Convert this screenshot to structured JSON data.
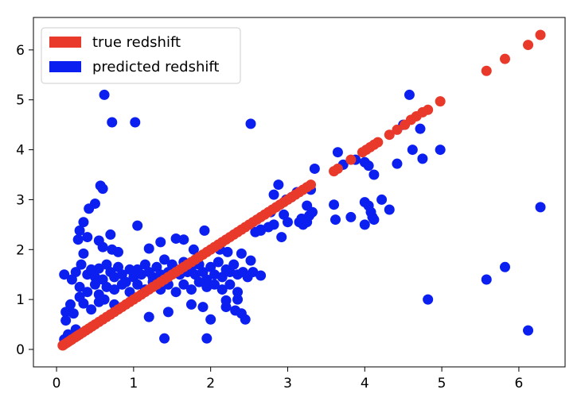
{
  "chart_data": {
    "type": "scatter",
    "title": "",
    "xlabel": "",
    "ylabel": "",
    "xlim": [
      -0.3,
      6.6
    ],
    "ylim": [
      -0.35,
      6.65
    ],
    "xticks": [
      "0",
      "1",
      "2",
      "3",
      "4",
      "5",
      "6"
    ],
    "yticks": [
      "0",
      "1",
      "2",
      "3",
      "4",
      "5",
      "6"
    ],
    "grid": false,
    "legend_position": "top-left",
    "series": [
      {
        "name": "true redshift",
        "color": "#e8392b",
        "points": [
          [
            0.08,
            0.08
          ],
          [
            0.1,
            0.1
          ],
          [
            0.13,
            0.13
          ],
          [
            0.15,
            0.15
          ],
          [
            0.18,
            0.18
          ],
          [
            0.2,
            0.2
          ],
          [
            0.24,
            0.24
          ],
          [
            0.27,
            0.27
          ],
          [
            0.3,
            0.3
          ],
          [
            0.34,
            0.34
          ],
          [
            0.38,
            0.38
          ],
          [
            0.42,
            0.42
          ],
          [
            0.46,
            0.46
          ],
          [
            0.5,
            0.5
          ],
          [
            0.55,
            0.55
          ],
          [
            0.6,
            0.6
          ],
          [
            0.65,
            0.65
          ],
          [
            0.7,
            0.7
          ],
          [
            0.75,
            0.75
          ],
          [
            0.8,
            0.8
          ],
          [
            0.85,
            0.85
          ],
          [
            0.9,
            0.9
          ],
          [
            0.95,
            0.95
          ],
          [
            1.0,
            1.0
          ],
          [
            1.05,
            1.05
          ],
          [
            1.1,
            1.1
          ],
          [
            1.15,
            1.15
          ],
          [
            1.2,
            1.2
          ],
          [
            1.25,
            1.25
          ],
          [
            1.3,
            1.3
          ],
          [
            1.35,
            1.35
          ],
          [
            1.4,
            1.4
          ],
          [
            1.45,
            1.45
          ],
          [
            1.5,
            1.5
          ],
          [
            1.55,
            1.55
          ],
          [
            1.6,
            1.6
          ],
          [
            1.65,
            1.65
          ],
          [
            1.7,
            1.7
          ],
          [
            1.75,
            1.75
          ],
          [
            1.8,
            1.8
          ],
          [
            1.85,
            1.85
          ],
          [
            1.9,
            1.9
          ],
          [
            1.95,
            1.95
          ],
          [
            2.0,
            2.0
          ],
          [
            2.05,
            2.05
          ],
          [
            2.1,
            2.1
          ],
          [
            2.15,
            2.15
          ],
          [
            2.2,
            2.2
          ],
          [
            2.25,
            2.25
          ],
          [
            2.3,
            2.3
          ],
          [
            2.35,
            2.35
          ],
          [
            2.4,
            2.4
          ],
          [
            2.45,
            2.45
          ],
          [
            2.5,
            2.5
          ],
          [
            2.55,
            2.55
          ],
          [
            2.6,
            2.6
          ],
          [
            2.65,
            2.65
          ],
          [
            2.7,
            2.7
          ],
          [
            2.75,
            2.75
          ],
          [
            2.8,
            2.8
          ],
          [
            2.85,
            2.85
          ],
          [
            2.9,
            2.9
          ],
          [
            2.95,
            2.95
          ],
          [
            3.0,
            3.0
          ],
          [
            3.05,
            3.05
          ],
          [
            3.1,
            3.1
          ],
          [
            3.15,
            3.15
          ],
          [
            3.2,
            3.2
          ],
          [
            3.25,
            3.25
          ],
          [
            3.3,
            3.3
          ],
          [
            3.6,
            3.57
          ],
          [
            3.65,
            3.62
          ],
          [
            3.82,
            3.8
          ],
          [
            3.97,
            3.95
          ],
          [
            4.02,
            4.0
          ],
          [
            4.07,
            4.05
          ],
          [
            4.12,
            4.1
          ],
          [
            4.17,
            4.15
          ],
          [
            4.32,
            4.3
          ],
          [
            4.42,
            4.4
          ],
          [
            4.52,
            4.5
          ],
          [
            4.6,
            4.6
          ],
          [
            4.67,
            4.67
          ],
          [
            4.75,
            4.75
          ],
          [
            4.82,
            4.8
          ],
          [
            4.98,
            4.97
          ],
          [
            5.58,
            5.58
          ],
          [
            5.82,
            5.82
          ],
          [
            6.12,
            6.1
          ],
          [
            6.28,
            6.3
          ]
        ]
      },
      {
        "name": "predicted redshift",
        "color": "#0b1ff0",
        "points": [
          [
            0.62,
            5.1
          ],
          [
            0.72,
            4.55
          ],
          [
            1.02,
            4.55
          ],
          [
            2.52,
            4.52
          ],
          [
            0.57,
            3.28
          ],
          [
            0.6,
            3.22
          ],
          [
            0.5,
            2.92
          ],
          [
            0.42,
            2.82
          ],
          [
            0.35,
            2.55
          ],
          [
            0.3,
            2.38
          ],
          [
            1.05,
            2.48
          ],
          [
            0.28,
            2.2
          ],
          [
            0.4,
            2.25
          ],
          [
            0.55,
            2.18
          ],
          [
            0.7,
            2.3
          ],
          [
            0.72,
            2.0
          ],
          [
            0.6,
            2.05
          ],
          [
            0.8,
            1.95
          ],
          [
            0.35,
            1.92
          ],
          [
            0.1,
            1.5
          ],
          [
            0.2,
            1.4
          ],
          [
            0.25,
            1.55
          ],
          [
            0.32,
            1.7
          ],
          [
            0.4,
            1.5
          ],
          [
            0.45,
            1.6
          ],
          [
            0.5,
            1.45
          ],
          [
            0.55,
            1.62
          ],
          [
            0.6,
            1.4
          ],
          [
            0.65,
            1.7
          ],
          [
            0.7,
            1.55
          ],
          [
            0.75,
            1.45
          ],
          [
            0.8,
            1.65
          ],
          [
            0.85,
            1.5
          ],
          [
            0.9,
            1.35
          ],
          [
            0.95,
            1.6
          ],
          [
            1.0,
            1.45
          ],
          [
            1.05,
            1.6
          ],
          [
            1.1,
            1.5
          ],
          [
            1.15,
            1.7
          ],
          [
            1.2,
            1.55
          ],
          [
            1.25,
            1.45
          ],
          [
            1.3,
            1.65
          ],
          [
            1.35,
            1.5
          ],
          [
            1.4,
            1.8
          ],
          [
            1.45,
            1.55
          ],
          [
            1.5,
            1.7
          ],
          [
            1.55,
            1.6
          ],
          [
            1.6,
            1.5
          ],
          [
            1.65,
            1.75
          ],
          [
            1.7,
            1.55
          ],
          [
            1.75,
            1.65
          ],
          [
            1.8,
            1.5
          ],
          [
            1.85,
            1.7
          ],
          [
            1.9,
            1.55
          ],
          [
            1.95,
            1.4
          ],
          [
            2.0,
            1.65
          ],
          [
            2.05,
            1.5
          ],
          [
            2.1,
            1.75
          ],
          [
            2.15,
            1.45
          ],
          [
            2.2,
            1.6
          ],
          [
            2.25,
            1.55
          ],
          [
            2.3,
            1.7
          ],
          [
            2.35,
            1.5
          ],
          [
            0.3,
            1.25
          ],
          [
            0.4,
            1.15
          ],
          [
            0.5,
            1.3
          ],
          [
            0.55,
            1.1
          ],
          [
            0.65,
            1.25
          ],
          [
            0.75,
            1.2
          ],
          [
            0.85,
            1.3
          ],
          [
            0.95,
            1.15
          ],
          [
            1.05,
            1.3
          ],
          [
            1.15,
            1.2
          ],
          [
            1.25,
            1.35
          ],
          [
            1.35,
            1.2
          ],
          [
            1.45,
            1.3
          ],
          [
            1.55,
            1.15
          ],
          [
            1.65,
            1.3
          ],
          [
            1.75,
            1.2
          ],
          [
            1.85,
            1.35
          ],
          [
            1.95,
            1.25
          ],
          [
            2.05,
            1.3
          ],
          [
            2.15,
            1.2
          ],
          [
            2.25,
            1.3
          ],
          [
            2.35,
            1.15
          ],
          [
            0.12,
            0.75
          ],
          [
            0.12,
            0.58
          ],
          [
            0.18,
            0.9
          ],
          [
            0.22,
            0.72
          ],
          [
            0.3,
            1.05
          ],
          [
            0.35,
            0.92
          ],
          [
            0.45,
            0.8
          ],
          [
            0.55,
            0.95
          ],
          [
            0.62,
            1.0
          ],
          [
            0.75,
            0.9
          ],
          [
            1.2,
            0.65
          ],
          [
            1.45,
            0.75
          ],
          [
            1.75,
            0.9
          ],
          [
            1.9,
            0.85
          ],
          [
            2.0,
            0.6
          ],
          [
            2.2,
            0.85
          ],
          [
            2.32,
            0.78
          ],
          [
            2.4,
            0.72
          ],
          [
            2.45,
            0.6
          ],
          [
            1.4,
            0.22
          ],
          [
            1.95,
            0.22
          ],
          [
            0.1,
            0.2
          ],
          [
            0.12,
            0.15
          ],
          [
            0.15,
            0.3
          ],
          [
            0.2,
            0.25
          ],
          [
            0.25,
            0.4
          ],
          [
            1.2,
            2.02
          ],
          [
            1.35,
            2.15
          ],
          [
            1.55,
            2.22
          ],
          [
            1.65,
            2.2
          ],
          [
            1.78,
            2.0
          ],
          [
            1.92,
            2.38
          ],
          [
            2.12,
            2.0
          ],
          [
            2.22,
            1.95
          ],
          [
            2.4,
            1.92
          ],
          [
            2.52,
            1.78
          ],
          [
            2.42,
            1.55
          ],
          [
            2.48,
            1.45
          ],
          [
            2.2,
            0.98
          ],
          [
            2.35,
            1.0
          ],
          [
            2.55,
            1.55
          ],
          [
            2.65,
            1.48
          ],
          [
            2.65,
            2.4
          ],
          [
            2.75,
            2.45
          ],
          [
            2.82,
            2.5
          ],
          [
            2.82,
            3.1
          ],
          [
            2.88,
            3.3
          ],
          [
            2.95,
            2.7
          ],
          [
            2.98,
            3.0
          ],
          [
            3.05,
            3.05
          ],
          [
            3.0,
            2.55
          ],
          [
            2.78,
            2.75
          ],
          [
            2.65,
            2.38
          ],
          [
            2.58,
            2.35
          ],
          [
            3.12,
            3.15
          ],
          [
            3.15,
            2.55
          ],
          [
            3.18,
            2.62
          ],
          [
            3.2,
            2.5
          ],
          [
            3.25,
            2.55
          ],
          [
            3.28,
            2.68
          ],
          [
            3.3,
            3.2
          ],
          [
            3.35,
            3.62
          ],
          [
            3.32,
            2.75
          ],
          [
            2.92,
            2.25
          ],
          [
            3.25,
            2.88
          ],
          [
            3.6,
            2.9
          ],
          [
            3.62,
            2.6
          ],
          [
            3.65,
            3.95
          ],
          [
            3.72,
            3.7
          ],
          [
            3.88,
            3.8
          ],
          [
            4.0,
            2.95
          ],
          [
            4.05,
            2.88
          ],
          [
            4.08,
            2.75
          ],
          [
            4.1,
            2.65
          ],
          [
            4.0,
            2.5
          ],
          [
            3.82,
            2.65
          ],
          [
            4.0,
            3.75
          ],
          [
            4.05,
            3.68
          ],
          [
            4.12,
            3.5
          ],
          [
            4.22,
            3.0
          ],
          [
            4.32,
            2.8
          ],
          [
            4.12,
            2.6
          ],
          [
            4.42,
            3.72
          ],
          [
            4.5,
            4.5
          ],
          [
            4.58,
            5.1
          ],
          [
            4.62,
            4.0
          ],
          [
            4.72,
            4.42
          ],
          [
            4.75,
            3.82
          ],
          [
            4.82,
            1.0
          ],
          [
            4.98,
            4.0
          ],
          [
            5.58,
            1.4
          ],
          [
            5.82,
            1.65
          ],
          [
            6.12,
            0.38
          ],
          [
            6.28,
            2.85
          ]
        ]
      }
    ]
  }
}
